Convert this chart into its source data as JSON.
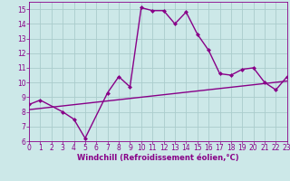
{
  "xlabel": "Windchill (Refroidissement éolien,°C)",
  "background_color": "#cce8e8",
  "grid_color": "#aacccc",
  "line_color": "#880088",
  "curve_x": [
    0,
    1,
    3,
    4,
    5,
    7,
    8,
    9,
    10,
    11,
    12,
    13,
    14,
    15,
    16,
    17,
    18,
    19,
    20,
    21,
    22,
    23
  ],
  "curve_y": [
    8.5,
    8.8,
    8.0,
    7.5,
    6.2,
    9.3,
    10.4,
    9.7,
    15.1,
    14.9,
    14.9,
    14.0,
    14.8,
    13.3,
    12.2,
    10.6,
    10.5,
    10.9,
    11.0,
    10.0,
    9.5,
    10.4
  ],
  "trend_x": [
    0,
    23
  ],
  "trend_y": [
    8.15,
    10.1
  ],
  "xlim": [
    0,
    23
  ],
  "ylim": [
    6,
    15.5
  ],
  "yticks": [
    6,
    7,
    8,
    9,
    10,
    11,
    12,
    13,
    14,
    15
  ],
  "xticks": [
    0,
    1,
    2,
    3,
    4,
    5,
    6,
    7,
    8,
    9,
    10,
    11,
    12,
    13,
    14,
    15,
    16,
    17,
    18,
    19,
    20,
    21,
    22,
    23
  ],
  "marker_size": 2.5,
  "line_width": 1.0,
  "tick_fontsize": 5.5,
  "xlabel_fontsize": 6.0
}
